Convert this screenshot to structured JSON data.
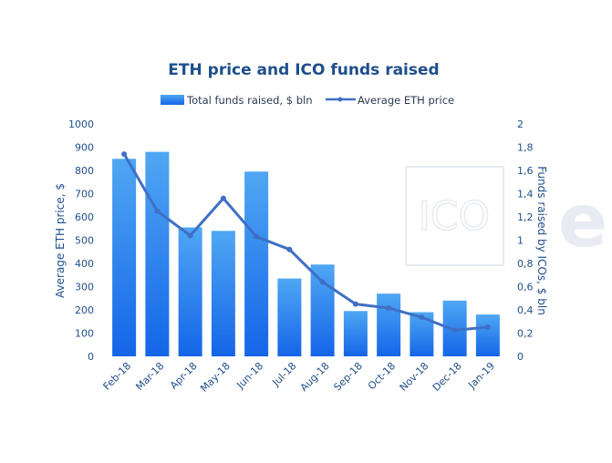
{
  "chart_data": {
    "type": "bar",
    "title": "ETH price and ICO funds raised",
    "categories": [
      "Feb-18",
      "Mar-18",
      "Apr-18",
      "May-18",
      "Jun-18",
      "Jul-18",
      "Aug-18",
      "Sep-18",
      "Oct-18",
      "Nov-18",
      "Dec-18",
      "Jan-19"
    ],
    "series": [
      {
        "name": "Total funds raised, $ bln",
        "type": "bar",
        "axis": "right",
        "values": [
          1.7,
          1.76,
          1.11,
          1.08,
          1.59,
          0.67,
          0.79,
          0.39,
          0.54,
          0.38,
          0.48,
          0.36
        ]
      },
      {
        "name": "Average ETH price",
        "type": "line",
        "axis": "left",
        "values": [
          870,
          625,
          520,
          680,
          515,
          460,
          320,
          225,
          208,
          168,
          112,
          126
        ]
      }
    ],
    "ylabel": "Average ETH price, $",
    "y2label": "Funds raised by ICOs, $ bln",
    "ylim": [
      0,
      1000
    ],
    "y2lim": [
      0,
      2
    ],
    "yticks": [
      "0",
      "100",
      "200",
      "300",
      "400",
      "500",
      "600",
      "700",
      "800",
      "900",
      "1000"
    ],
    "y2ticks": [
      "0",
      "0,2",
      "0,4",
      "0,6",
      "0,8",
      "1",
      "1,2",
      "1,4",
      "1,6",
      "1,8",
      "2"
    ],
    "grid": false,
    "legend_position": "top-center"
  },
  "watermark": {
    "text": "ICO",
    "partial_text": "e"
  },
  "colors": {
    "title": "#1f4e8c",
    "axis_text": "#1f4e8c",
    "bar_top": "#4fa7f3",
    "bar_bottom": "#1565e8",
    "line": "#3f6fc6",
    "watermark": "#e8ebf2"
  }
}
